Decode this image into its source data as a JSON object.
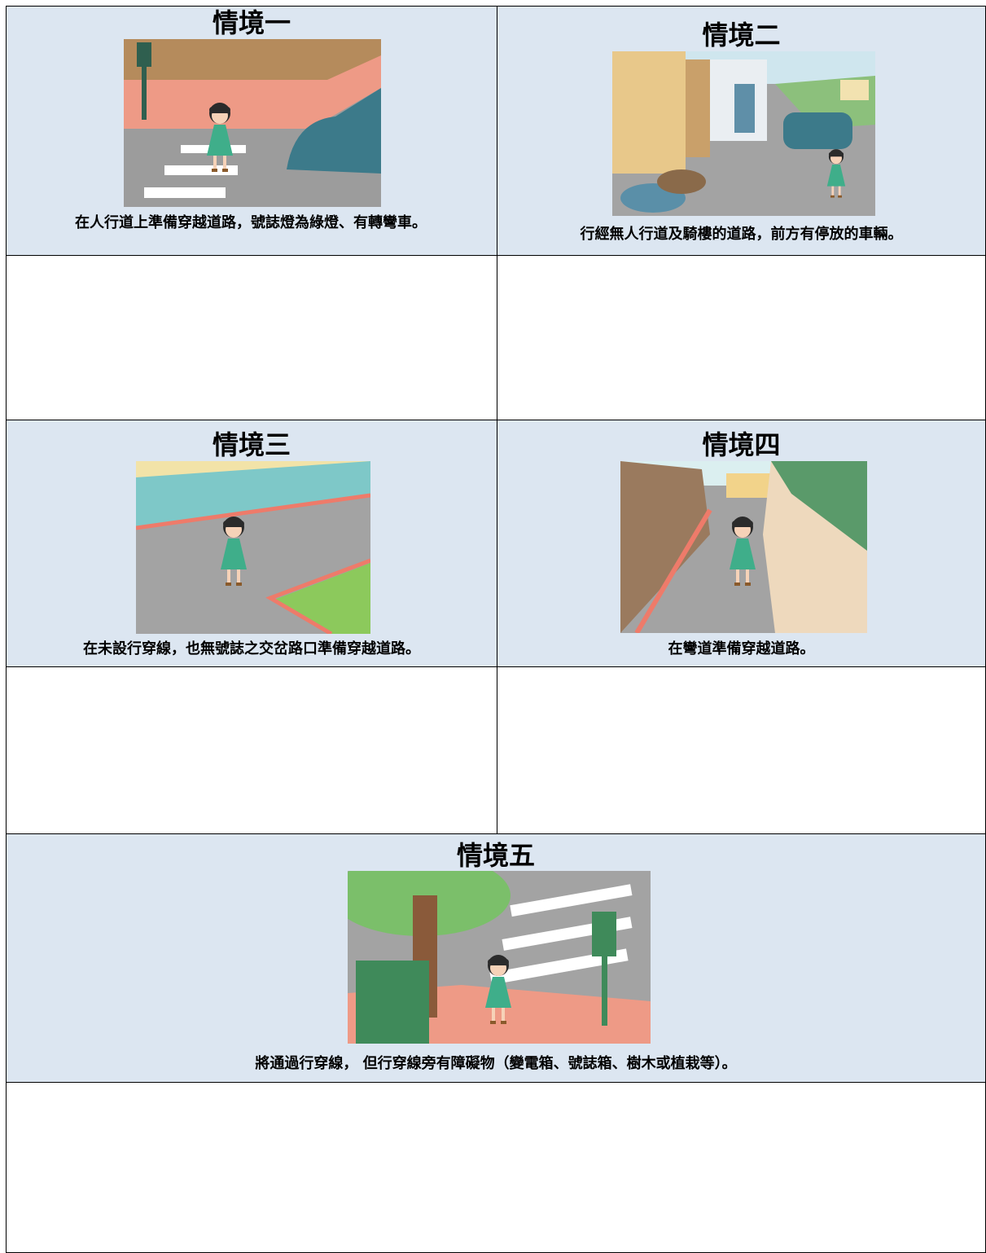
{
  "scenarios": [
    {
      "title": "情境一",
      "caption": "在人行道上準備穿越道路，號誌燈為綠燈、有轉彎車。"
    },
    {
      "title": "情境二",
      "caption": "行經無人行道及騎樓的道路，前方有停放的車輛。"
    },
    {
      "title": "情境三",
      "caption": "在未設行穿線，也無號誌之交岔路口準備穿越道路。"
    },
    {
      "title": "情境四",
      "caption": "在彎道準備穿越道路。"
    },
    {
      "title": "情境五",
      "caption": "將通過行穿線， 但行穿線旁有障礙物（變電箱、號誌箱、樹木或植栽等）。"
    }
  ]
}
